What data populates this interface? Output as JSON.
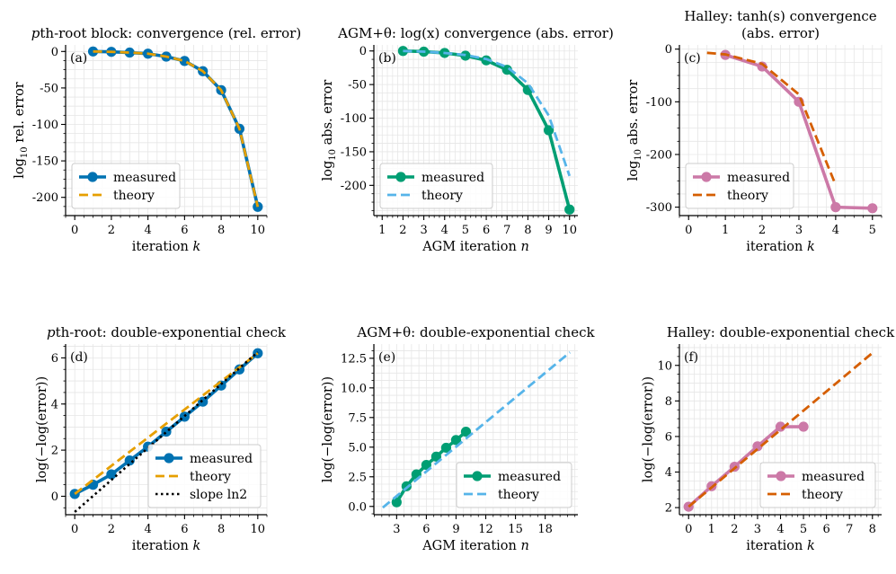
{
  "chart_data": [
    {
      "type": "line",
      "panel": "(a)",
      "title": "pth-root block: convergence (rel. error)",
      "xlabel": "iteration k",
      "ylabel": "log10 rel. error",
      "xlim": [
        -0.5,
        10.5
      ],
      "ylim": [
        -225,
        9
      ],
      "xticks": [
        0,
        2,
        4,
        6,
        8,
        10
      ],
      "yticks": [
        0,
        -50,
        -100,
        -150,
        -200
      ],
      "legend_position": "lower-left",
      "series": [
        {
          "name": "measured",
          "color": "#0072b2",
          "style": "solid-marker",
          "x": [
            1,
            2,
            3,
            4,
            5,
            6,
            7,
            8,
            9,
            10
          ],
          "y": [
            0,
            -0.5,
            -1.5,
            -3,
            -7,
            -13,
            -27,
            -53,
            -106,
            -213
          ]
        },
        {
          "name": "theory",
          "color": "#e69f00",
          "style": "dashed",
          "x": [
            1,
            2,
            3,
            4,
            5,
            6,
            7,
            8,
            9,
            10
          ],
          "y": [
            0,
            -0.5,
            -1.5,
            -3,
            -7,
            -13,
            -27,
            -53,
            -106,
            -213
          ]
        }
      ]
    },
    {
      "type": "line",
      "panel": "(b)",
      "title": "AGM+θ: log(x) convergence (abs. error)",
      "xlabel": "AGM iteration n",
      "ylabel": "log10 abs. error",
      "xlim": [
        0.6,
        10.4
      ],
      "ylim": [
        -245,
        9
      ],
      "xticks": [
        1,
        2,
        3,
        4,
        5,
        6,
        7,
        8,
        9,
        10
      ],
      "yticks": [
        0,
        -50,
        -100,
        -150,
        -200
      ],
      "legend_position": "lower-left",
      "series": [
        {
          "name": "measured",
          "color": "#009e73",
          "style": "solid-marker",
          "x": [
            2,
            3,
            4,
            5,
            6,
            7,
            8,
            9,
            10
          ],
          "y": [
            0,
            -1,
            -3,
            -7,
            -14,
            -28,
            -58,
            -118,
            -236
          ]
        },
        {
          "name": "theory",
          "color": "#56b4e9",
          "style": "dashed",
          "x": [
            2,
            3,
            4,
            5,
            6,
            7,
            8,
            9,
            10
          ],
          "y": [
            0,
            -1,
            -3,
            -6,
            -12,
            -24,
            -48,
            -96,
            -186
          ]
        }
      ]
    },
    {
      "type": "line",
      "panel": "(c)",
      "title": "Halley: tanh(s) convergence (abs. error)",
      "xlabel": "iteration k",
      "ylabel": "log10 abs. error",
      "xlim": [
        -0.25,
        5.25
      ],
      "ylim": [
        -316,
        8
      ],
      "xticks": [
        0,
        1,
        2,
        3,
        4,
        5
      ],
      "yticks": [
        0,
        -100,
        -200,
        -300
      ],
      "legend_position": "lower-left",
      "series": [
        {
          "name": "measured",
          "color": "#cc79a7",
          "style": "solid-marker",
          "x": [
            1,
            2,
            3,
            4,
            5
          ],
          "y": [
            -11,
            -33,
            -100,
            -300,
            -302
          ]
        },
        {
          "name": "theory",
          "color": "#d55e00",
          "style": "dashed",
          "x": [
            0.5,
            1,
            2,
            3,
            4
          ],
          "y": [
            -7,
            -10,
            -28,
            -86,
            -258
          ]
        }
      ]
    },
    {
      "type": "line",
      "panel": "(d)",
      "title": "pth-root: double-exponential check",
      "xlabel": "iteration k",
      "ylabel": "log(−log(error))",
      "xlim": [
        -0.5,
        10.5
      ],
      "ylim": [
        -0.8,
        6.6
      ],
      "xticks": [
        0,
        2,
        4,
        6,
        8,
        10
      ],
      "yticks": [
        0,
        2,
        4,
        6
      ],
      "legend_position": "lower-right",
      "series": [
        {
          "name": "measured",
          "color": "#0072b2",
          "style": "solid-marker",
          "x": [
            0,
            1,
            2,
            3,
            4,
            5,
            6,
            7,
            8,
            9,
            10
          ],
          "y": [
            0.1,
            0.5,
            0.95,
            1.55,
            2.15,
            2.8,
            3.45,
            4.1,
            4.8,
            5.5,
            6.2
          ]
        },
        {
          "name": "theory",
          "color": "#e69f00",
          "style": "dashed",
          "x": [
            0,
            10
          ],
          "y": [
            0.1,
            6.2
          ]
        },
        {
          "name": "slope ln2",
          "color": "#000000",
          "style": "dotted",
          "x": [
            0,
            10
          ],
          "y": [
            -0.68,
            6.25
          ]
        }
      ]
    },
    {
      "type": "line",
      "panel": "(e)",
      "title": "AGM+θ: double-exponential check",
      "xlabel": "AGM iteration n",
      "ylabel": "log(−log(error))",
      "xlim": [
        0.7,
        21.3
      ],
      "ylim": [
        -0.7,
        13.7
      ],
      "xticks": [
        3,
        6,
        9,
        12,
        15,
        18
      ],
      "yticks": [
        0.0,
        2.5,
        5.0,
        7.5,
        10.0,
        12.5
      ],
      "legend_position": "lower-right",
      "series": [
        {
          "name": "measured",
          "color": "#009e73",
          "style": "solid-marker",
          "x": [
            3,
            4,
            5,
            6,
            7,
            8,
            9,
            10
          ],
          "y": [
            0.35,
            1.7,
            2.7,
            3.5,
            4.2,
            4.95,
            5.6,
            6.3
          ]
        },
        {
          "name": "theory",
          "color": "#56b4e9",
          "style": "dashed",
          "x": [
            1.6,
            20.5
          ],
          "y": [
            -0.1,
            13.0
          ]
        }
      ]
    },
    {
      "type": "line",
      "panel": "(f)",
      "title": "Halley: double-exponential check",
      "xlabel": "iteration k",
      "ylabel": "log(−log(error))",
      "xlim": [
        -0.4,
        8.4
      ],
      "ylim": [
        1.6,
        11.2
      ],
      "xticks": [
        0,
        1,
        2,
        3,
        4,
        5,
        6,
        7,
        8
      ],
      "yticks": [
        2,
        4,
        6,
        8,
        10
      ],
      "legend_position": "lower-right",
      "series": [
        {
          "name": "measured",
          "color": "#cc79a7",
          "style": "solid-marker",
          "x": [
            0,
            1,
            2,
            3,
            4,
            5
          ],
          "y": [
            2.05,
            3.2,
            4.3,
            5.45,
            6.55,
            6.55
          ]
        },
        {
          "name": "theory",
          "color": "#d55e00",
          "style": "dashed",
          "x": [
            0,
            8
          ],
          "y": [
            2.05,
            10.7
          ]
        }
      ]
    }
  ]
}
